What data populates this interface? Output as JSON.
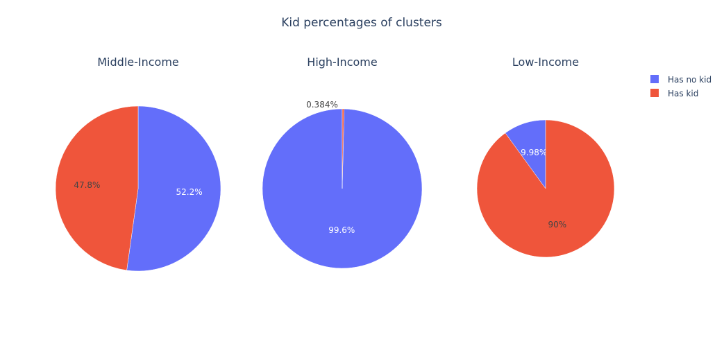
{
  "chart_data": {
    "type": "pie",
    "title": "Kid percentages of clusters",
    "legend": {
      "placement": "top-right",
      "entries": [
        {
          "name": "Has no kid",
          "color": "#636efa"
        },
        {
          "name": "Has kid",
          "color": "#ef553b"
        }
      ]
    },
    "pies": [
      {
        "name": "Middle-Income",
        "slices": [
          {
            "label": "Has no kid",
            "value": 52.2,
            "text": "52.2%"
          },
          {
            "label": "Has kid",
            "value": 47.8,
            "text": "47.8%"
          }
        ]
      },
      {
        "name": "High-Income",
        "slices": [
          {
            "label": "Has no kid",
            "value": 99.616,
            "text": "99.6%"
          },
          {
            "label": "Has kid",
            "value": 0.384,
            "text": "0.384%"
          }
        ]
      },
      {
        "name": "Low-Income",
        "slices": [
          {
            "label": "Has no kid",
            "value": 9.98,
            "text": "9.98%"
          },
          {
            "label": "Has kid",
            "value": 90.02,
            "text": "90%"
          }
        ]
      }
    ]
  }
}
